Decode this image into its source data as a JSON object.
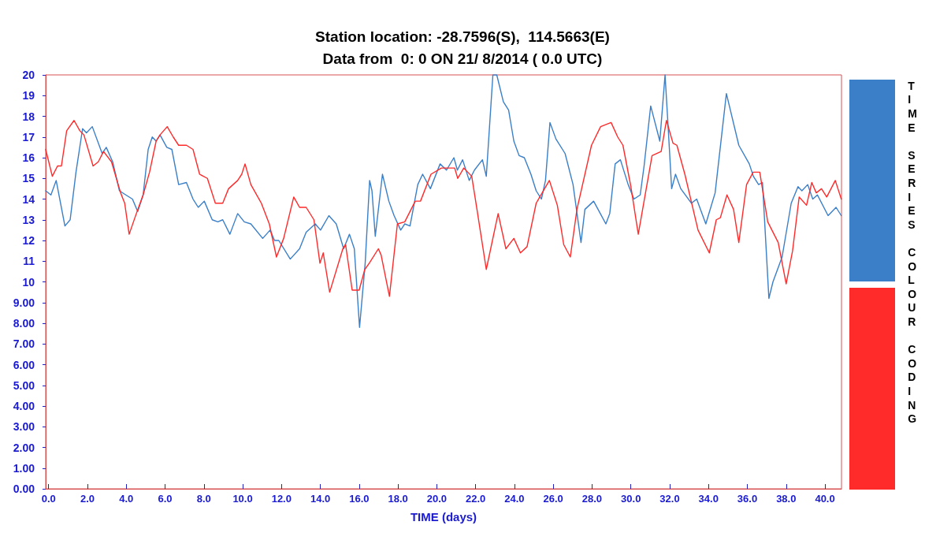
{
  "chart_data": {
    "type": "line",
    "title": "Station location: -28.7596(S),  114.5663(E)",
    "subtitle": "Data from  0: 0 ON 21/ 8/2014 ( 0.0 UTC)",
    "xlabel": "TIME (days)",
    "annotations": [
      "TIME SERIES COLOUR CODING"
    ],
    "xlim": [
      -0.15,
      40.85
    ],
    "xticks": [
      {
        "value": 0,
        "label": "0.0"
      },
      {
        "value": 2,
        "label": "2.0"
      },
      {
        "value": 4,
        "label": "4.0"
      },
      {
        "value": 6,
        "label": "6.0"
      },
      {
        "value": 8,
        "label": "8.0"
      },
      {
        "value": 10,
        "label": "10.0"
      },
      {
        "value": 12,
        "label": "12.0"
      },
      {
        "value": 14,
        "label": "14.0"
      },
      {
        "value": 16,
        "label": "16.0"
      },
      {
        "value": 18,
        "label": "18.0"
      },
      {
        "value": 20,
        "label": "20.0"
      },
      {
        "value": 22,
        "label": "22.0"
      },
      {
        "value": 24,
        "label": "24.0"
      },
      {
        "value": 26,
        "label": "26.0"
      },
      {
        "value": 28,
        "label": "28.0"
      },
      {
        "value": 30,
        "label": "30.0"
      },
      {
        "value": 32,
        "label": "32.0"
      },
      {
        "value": 34,
        "label": "34.0"
      },
      {
        "value": 36,
        "label": "36.0"
      },
      {
        "value": 38,
        "label": "38.0"
      },
      {
        "value": 40,
        "label": "40.0"
      }
    ],
    "ylim": [
      0,
      20
    ],
    "yticks": [
      {
        "value": 0,
        "label": "0.00"
      },
      {
        "value": 1,
        "label": "1.00"
      },
      {
        "value": 2,
        "label": "2.00"
      },
      {
        "value": 3,
        "label": "3.00"
      },
      {
        "value": 4,
        "label": "4.00"
      },
      {
        "value": 5,
        "label": "5.00"
      },
      {
        "value": 6,
        "label": "6.00"
      },
      {
        "value": 7,
        "label": "7.00"
      },
      {
        "value": 8,
        "label": "8.00"
      },
      {
        "value": 9,
        "label": "9.00"
      },
      10,
      11,
      12,
      13,
      14,
      15,
      16,
      17,
      18,
      19,
      20
    ],
    "grid": false,
    "marker": "none",
    "line_style": "solid",
    "series": [
      {
        "color": "#3a7fc8",
        "x": [
          -0.15,
          0.12,
          0.39,
          0.84,
          1.11,
          1.41,
          1.75,
          1.95,
          2.25,
          2.76,
          2.97,
          3.3,
          3.65,
          3.98,
          4.32,
          4.59,
          4.87,
          5.13,
          5.34,
          5.54,
          5.74,
          6.09,
          6.35,
          6.7,
          7.1,
          7.44,
          7.71,
          8.02,
          8.43,
          8.72,
          8.97,
          9.34,
          9.74,
          10.08,
          10.42,
          11.03,
          11.41,
          11.64,
          11.86,
          12.45,
          12.93,
          13.27,
          13.74,
          14.01,
          14.44,
          14.82,
          15.2,
          15.5,
          15.75,
          16.02,
          16.31,
          16.54,
          16.66,
          16.83,
          17.2,
          17.53,
          17.8,
          18.14,
          18.35,
          18.62,
          19.02,
          19.27,
          19.67,
          20.17,
          20.5,
          20.88,
          21.06,
          21.33,
          21.67,
          21.94,
          22.35,
          22.55,
          22.89,
          23.09,
          23.43,
          23.7,
          23.97,
          24.24,
          24.51,
          24.85,
          25.12,
          25.39,
          25.6,
          25.83,
          26.14,
          26.61,
          27.02,
          27.43,
          27.63,
          28.08,
          28.71,
          28.91,
          29.19,
          29.46,
          29.86,
          30.16,
          30.48,
          30.68,
          31.02,
          31.49,
          31.76,
          31.9,
          32.1,
          32.3,
          32.57,
          33.12,
          33.39,
          33.86,
          34.34,
          34.92,
          35.56,
          36.1,
          36.31,
          36.58,
          36.78,
          37.11,
          37.32,
          37.79,
          38.26,
          38.61,
          38.81,
          39.11,
          39.37,
          39.61,
          40.16,
          40.57,
          40.84
        ],
        "values": [
          14.4,
          14.2,
          14.9,
          12.7,
          13.0,
          15.3,
          17.4,
          17.2,
          17.5,
          16.2,
          16.5,
          15.8,
          14.4,
          14.2,
          14.0,
          13.4,
          14.2,
          16.4,
          17.0,
          16.8,
          17.1,
          16.5,
          16.4,
          14.7,
          14.8,
          14.0,
          13.6,
          13.9,
          13.0,
          12.9,
          13.0,
          12.3,
          13.3,
          12.9,
          12.8,
          12.1,
          12.5,
          12.0,
          12.0,
          11.1,
          11.6,
          12.4,
          12.8,
          12.5,
          13.2,
          12.8,
          11.6,
          12.3,
          11.6,
          7.8,
          10.9,
          14.9,
          14.4,
          12.2,
          15.2,
          13.9,
          13.2,
          12.5,
          12.8,
          12.7,
          14.7,
          15.2,
          14.5,
          15.7,
          15.4,
          16.0,
          15.4,
          15.9,
          14.9,
          15.4,
          15.9,
          15.1,
          20.0,
          20.0,
          18.7,
          18.3,
          16.8,
          16.1,
          16.0,
          15.2,
          14.4,
          14.0,
          14.9,
          17.7,
          16.9,
          16.2,
          14.7,
          11.9,
          13.5,
          13.9,
          12.8,
          13.3,
          15.7,
          15.9,
          14.7,
          14.0,
          14.2,
          15.6,
          18.5,
          16.8,
          20.0,
          17.8,
          14.5,
          15.2,
          14.5,
          13.8,
          14.0,
          12.8,
          14.3,
          19.1,
          16.6,
          15.7,
          15.1,
          14.7,
          14.8,
          9.2,
          10.0,
          11.2,
          13.8,
          14.6,
          14.4,
          14.7,
          14.0,
          14.2,
          13.2,
          13.6,
          13.2
        ]
      },
      {
        "color": "#ff2a2a",
        "x": [
          -0.15,
          0.19,
          0.46,
          0.66,
          0.93,
          1.31,
          1.61,
          1.82,
          2.29,
          2.56,
          2.83,
          3.24,
          3.71,
          3.92,
          4.15,
          4.52,
          4.87,
          5.2,
          5.54,
          5.74,
          6.11,
          6.42,
          6.7,
          7.1,
          7.44,
          7.78,
          8.18,
          8.59,
          8.97,
          9.27,
          9.74,
          9.95,
          10.12,
          10.42,
          10.96,
          11.37,
          11.74,
          12.11,
          12.63,
          12.93,
          13.27,
          13.67,
          13.98,
          14.15,
          14.48,
          15.16,
          15.3,
          15.64,
          16.0,
          16.29,
          16.52,
          16.99,
          17.13,
          17.56,
          17.97,
          18.35,
          18.89,
          19.16,
          19.7,
          20.24,
          20.92,
          21.08,
          21.39,
          21.8,
          22.07,
          22.55,
          23.16,
          23.56,
          23.97,
          24.31,
          24.65,
          25.12,
          25.8,
          26.21,
          26.54,
          26.88,
          27.22,
          27.97,
          28.44,
          28.98,
          29.32,
          29.59,
          30.0,
          30.38,
          31.09,
          31.56,
          31.83,
          32.17,
          32.37,
          32.78,
          33.46,
          34.04,
          34.4,
          34.61,
          34.95,
          35.29,
          35.56,
          35.96,
          36.3,
          36.64,
          37.05,
          37.59,
          38.0,
          38.33,
          38.67,
          39.05,
          39.32,
          39.55,
          39.82,
          40.09,
          40.53,
          40.84
        ],
        "values": [
          16.4,
          15.1,
          15.6,
          15.6,
          17.3,
          17.8,
          17.3,
          17.1,
          15.6,
          15.8,
          16.3,
          15.8,
          14.3,
          13.8,
          12.3,
          13.3,
          14.2,
          15.3,
          16.8,
          17.1,
          17.5,
          17.0,
          16.6,
          16.6,
          16.4,
          15.2,
          15.0,
          13.8,
          13.8,
          14.5,
          14.9,
          15.2,
          15.7,
          14.7,
          13.8,
          12.8,
          11.2,
          12.1,
          14.1,
          13.6,
          13.6,
          13.0,
          10.9,
          11.4,
          9.5,
          11.6,
          11.8,
          9.6,
          9.6,
          10.6,
          10.9,
          11.6,
          11.3,
          9.3,
          12.8,
          12.9,
          13.9,
          13.9,
          15.2,
          15.5,
          15.5,
          15.0,
          15.5,
          15.1,
          13.5,
          10.6,
          13.3,
          11.6,
          12.1,
          11.4,
          11.7,
          13.8,
          14.9,
          13.7,
          11.8,
          11.2,
          13.5,
          16.6,
          17.5,
          17.7,
          17.0,
          16.6,
          14.6,
          12.3,
          16.1,
          16.3,
          17.8,
          16.7,
          16.6,
          15.2,
          12.5,
          11.4,
          13.0,
          13.1,
          14.2,
          13.5,
          11.9,
          14.7,
          15.3,
          15.3,
          12.9,
          11.9,
          9.9,
          11.5,
          14.1,
          13.7,
          14.8,
          14.3,
          14.5,
          14.1,
          14.9,
          14.0
        ]
      }
    ]
  }
}
